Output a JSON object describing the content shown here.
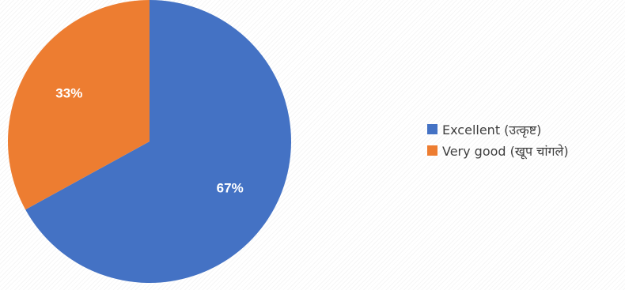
{
  "chart_data": {
    "type": "pie",
    "title": "",
    "categories": [
      "Excellent (उत्कृष्ट)",
      "Very good (खूप  चांगले)"
    ],
    "values": [
      67,
      33
    ],
    "data_labels": [
      "67%",
      "33%"
    ],
    "colors": [
      "#4472C4",
      "#ED7D31"
    ],
    "legend_position": "right"
  }
}
